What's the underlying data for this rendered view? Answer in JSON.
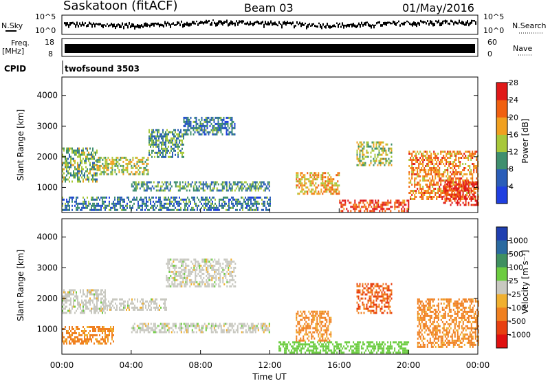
{
  "header": {
    "radar": "Saskatoon (fitACF)",
    "beam": "Beam 03",
    "date": "01/May/2016"
  },
  "top_panels": {
    "nsky_label": "N.Sky",
    "nsky_ticks": [
      "10^5",
      "10^0"
    ],
    "nsearch_label": "N.Search",
    "nsearch_ticks": [
      "10^5",
      "10^0"
    ],
    "freq_label": "Freq.",
    "freq_unit": "[MHz]",
    "freq_ticks": [
      "18",
      "8"
    ],
    "nave_label": "Nave",
    "nave_ticks": [
      "60",
      "0"
    ],
    "cpid_label": "CPID",
    "cpid_value": "twofsound 3503"
  },
  "chart_data": [
    {
      "type": "heatmap",
      "name": "power",
      "ylabel": "Slant Range [km]",
      "yticks": [
        "1000",
        "2000",
        "3000",
        "4000"
      ],
      "ylim": [
        180,
        4600
      ],
      "colorbar_label": "Power [dB]",
      "colorbar_ticks": [
        "4",
        "8",
        "12",
        "16",
        "20",
        "24",
        "28"
      ],
      "colorbar_colors": [
        "#1f3fe0",
        "#2a5db8",
        "#3f8f6e",
        "#a8c83a",
        "#f0a020",
        "#f06010",
        "#e01818"
      ],
      "regions": [
        {
          "t": [
            0.0,
            2.0
          ],
          "r": [
            1200,
            2300
          ],
          "level": 14
        },
        {
          "t": [
            2.0,
            5.0
          ],
          "r": [
            1400,
            2000
          ],
          "level": 16
        },
        {
          "t": [
            5.0,
            7.0
          ],
          "r": [
            2000,
            2900
          ],
          "level": 12
        },
        {
          "t": [
            7.0,
            10.0
          ],
          "r": [
            2700,
            3300
          ],
          "level": 10
        },
        {
          "t": [
            4.0,
            12.0
          ],
          "r": [
            900,
            1200
          ],
          "level": 12
        },
        {
          "t": [
            0.0,
            12.0
          ],
          "r": [
            250,
            700
          ],
          "level": 10
        },
        {
          "t": [
            13.5,
            16.0
          ],
          "r": [
            800,
            1500
          ],
          "level": 20
        },
        {
          "t": [
            16.0,
            20.0
          ],
          "r": [
            250,
            600
          ],
          "level": 26
        },
        {
          "t": [
            17.0,
            19.0
          ],
          "r": [
            1700,
            2500
          ],
          "level": 16
        },
        {
          "t": [
            20.0,
            24.0
          ],
          "r": [
            600,
            2200
          ],
          "level": 22
        },
        {
          "t": [
            22.0,
            24.0
          ],
          "r": [
            400,
            1200
          ],
          "level": 28
        }
      ]
    },
    {
      "type": "heatmap",
      "name": "velocity",
      "ylabel": "Slant Range [km]",
      "yticks": [
        "1000",
        "2000",
        "3000",
        "4000"
      ],
      "ylim": [
        180,
        4600
      ],
      "xlabel": "Time UT",
      "xticks": [
        "00:00",
        "04:00",
        "08:00",
        "12:00",
        "16:00",
        "20:00",
        "00:00"
      ],
      "xlim": [
        0,
        24
      ],
      "colorbar_label": "Velocity [m s⁻¹]",
      "colorbar_ticks": [
        "1000",
        "500",
        "100",
        "25",
        "-25",
        "-100",
        "-500",
        "-1000"
      ],
      "colorbar_colors": [
        "#1f3fb0",
        "#2a6aa0",
        "#3f9060",
        "#6ccc40",
        "#c8c8c0",
        "#f0b030",
        "#f08020",
        "#e84010",
        "#e01010"
      ],
      "regions": [
        {
          "t": [
            0.0,
            2.5
          ],
          "r": [
            1500,
            2300
          ],
          "v": 0
        },
        {
          "t": [
            2.5,
            6.0
          ],
          "r": [
            1600,
            2000
          ],
          "v": 0
        },
        {
          "t": [
            6.0,
            10.0
          ],
          "r": [
            2400,
            3300
          ],
          "v": 0
        },
        {
          "t": [
            0.0,
            3.0
          ],
          "r": [
            500,
            1100
          ],
          "v": -120
        },
        {
          "t": [
            4.0,
            12.0
          ],
          "r": [
            900,
            1200
          ],
          "v": 0
        },
        {
          "t": [
            12.5,
            20.0
          ],
          "r": [
            200,
            600
          ],
          "v": 60
        },
        {
          "t": [
            13.5,
            15.5
          ],
          "r": [
            600,
            1600
          ],
          "v": -120
        },
        {
          "t": [
            17.0,
            19.0
          ],
          "r": [
            1500,
            2500
          ],
          "v": -500
        },
        {
          "t": [
            20.5,
            24.0
          ],
          "r": [
            400,
            2000
          ],
          "v": -120
        }
      ]
    }
  ]
}
